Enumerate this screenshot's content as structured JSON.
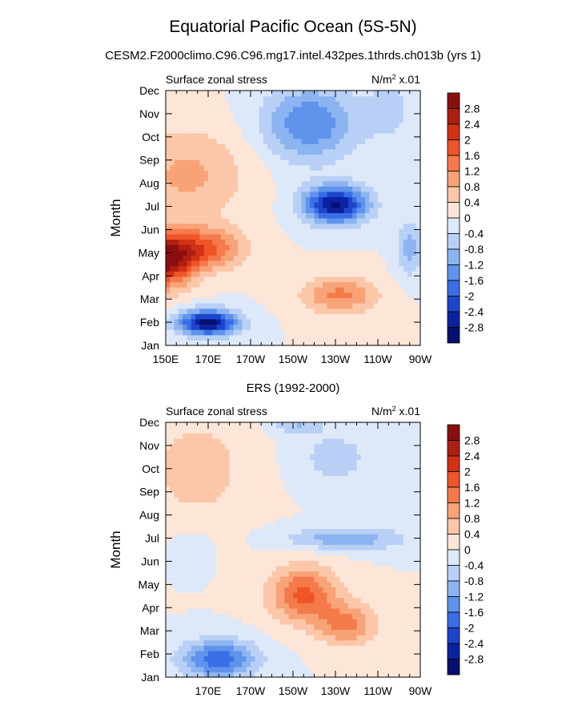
{
  "title": "Equatorial Pacific Ocean (5S-5N)",
  "subtitle": "CESM2.F2000climo.C96.C96.mg17.intel.432pes.1thrds.ch013b (yrs 1)",
  "chart_data": [
    {
      "type": "heatmap",
      "panel_title": "",
      "left_label": "Surface zonal stress",
      "units_base": "N/m",
      "units_sup": "2",
      "units_tail": " x.01",
      "ylabel": "Month",
      "xlabel": "",
      "xlim": [
        150,
        270
      ],
      "x_ticks": [
        150,
        170,
        190,
        210,
        230,
        250,
        270
      ],
      "x_tick_labels": [
        "150E",
        "170E",
        "170W",
        "150W",
        "130W",
        "110W",
        "90W"
      ],
      "y_tick_labels": [
        "Jan",
        "Feb",
        "Mar",
        "Apr",
        "May",
        "Jun",
        "Jul",
        "Aug",
        "Sep",
        "Oct",
        "Nov",
        "Dec"
      ],
      "contour_levels": [
        "2.8",
        "2.4",
        "2",
        "1.6",
        "1.2",
        "0.8",
        "0.4",
        "0",
        "-0.4",
        "-0.8",
        "-1.2",
        "-1.6",
        "-2",
        "-2.4",
        "-2.8"
      ],
      "features": [
        {
          "lon": 170,
          "month": 1.0,
          "amp": -3.0,
          "wlon": 14,
          "wmon": 0.55
        },
        {
          "lon": 147,
          "month": 3.6,
          "amp": 3.6,
          "wlon": 14,
          "wmon": 1.1
        },
        {
          "lon": 168,
          "month": 4.2,
          "amp": 1.7,
          "wlon": 18,
          "wmon": 0.9
        },
        {
          "lon": 232,
          "month": 2.2,
          "amp": 1.3,
          "wlon": 18,
          "wmon": 0.8
        },
        {
          "lon": 160,
          "month": 7.4,
          "amp": 0.9,
          "wlon": 28,
          "wmon": 2.0
        },
        {
          "lon": 230,
          "month": 6.1,
          "amp": -2.9,
          "wlon": 15,
          "wmon": 0.8
        },
        {
          "lon": 218,
          "month": 9.6,
          "amp": -1.6,
          "wlon": 22,
          "wmon": 1.6
        },
        {
          "lon": 256,
          "month": 10.2,
          "amp": -0.5,
          "wlon": 12,
          "wmon": 1.5
        },
        {
          "lon": 265,
          "month": 4.2,
          "amp": -1.0,
          "wlon": 6,
          "wmon": 1.2
        },
        {
          "lon": 152,
          "month": 3.0,
          "amp": -0.5,
          "wlon": 5,
          "wmon": 0.6
        }
      ]
    },
    {
      "type": "heatmap",
      "panel_title": "ERS (1992-2000)",
      "left_label": "Surface zonal stress",
      "units_base": "N/m",
      "units_sup": "2",
      "units_tail": " x.01",
      "ylabel": "Month",
      "xlabel": "",
      "xlim": [
        150,
        270
      ],
      "x_ticks": [
        170,
        190,
        210,
        230,
        250,
        270
      ],
      "x_tick_labels": [
        "170E",
        "170W",
        "150W",
        "130W",
        "110W",
        "90W"
      ],
      "y_tick_labels": [
        "Jan",
        "Feb",
        "Mar",
        "Apr",
        "May",
        "Jun",
        "Jul",
        "Aug",
        "Sep",
        "Oct",
        "Nov",
        "Dec"
      ],
      "contour_levels": [
        "2.8",
        "2.4",
        "2",
        "1.6",
        "1.2",
        "0.8",
        "0.4",
        "0",
        "-0.4",
        "-0.8",
        "-1.2",
        "-1.6",
        "-2",
        "-2.4",
        "-2.8"
      ],
      "features": [
        {
          "lon": 175,
          "month": 0.8,
          "amp": -1.9,
          "wlon": 18,
          "wmon": 0.8
        },
        {
          "lon": 215,
          "month": 3.6,
          "amp": 1.7,
          "wlon": 16,
          "wmon": 1.2
        },
        {
          "lon": 235,
          "month": 2.3,
          "amp": 1.3,
          "wlon": 14,
          "wmon": 0.9
        },
        {
          "lon": 165,
          "month": 9.0,
          "amp": 0.6,
          "wlon": 25,
          "wmon": 2.5
        },
        {
          "lon": 235,
          "month": 6.0,
          "amp": -1.1,
          "wlon": 28,
          "wmon": 0.5
        },
        {
          "lon": 230,
          "month": 9.5,
          "amp": -0.6,
          "wlon": 18,
          "wmon": 1.2
        },
        {
          "lon": 212,
          "month": 11.0,
          "amp": -0.8,
          "wlon": 12,
          "wmon": 0.5
        },
        {
          "lon": 162,
          "month": 5.6,
          "amp": -0.3,
          "wlon": 10,
          "wmon": 1.0
        }
      ]
    }
  ],
  "colors": {
    "levels_high_to_low": [
      "#8c0f0f",
      "#b01e12",
      "#d23214",
      "#ee5528",
      "#f57a4b",
      "#f8a277",
      "#fbc7a8",
      "#fde6d8",
      "#dde8f8",
      "#b9d0f6",
      "#8cb4f0",
      "#5f93ec",
      "#3a6ee6",
      "#1d45cc",
      "#0a22a0",
      "#05106e"
    ]
  }
}
